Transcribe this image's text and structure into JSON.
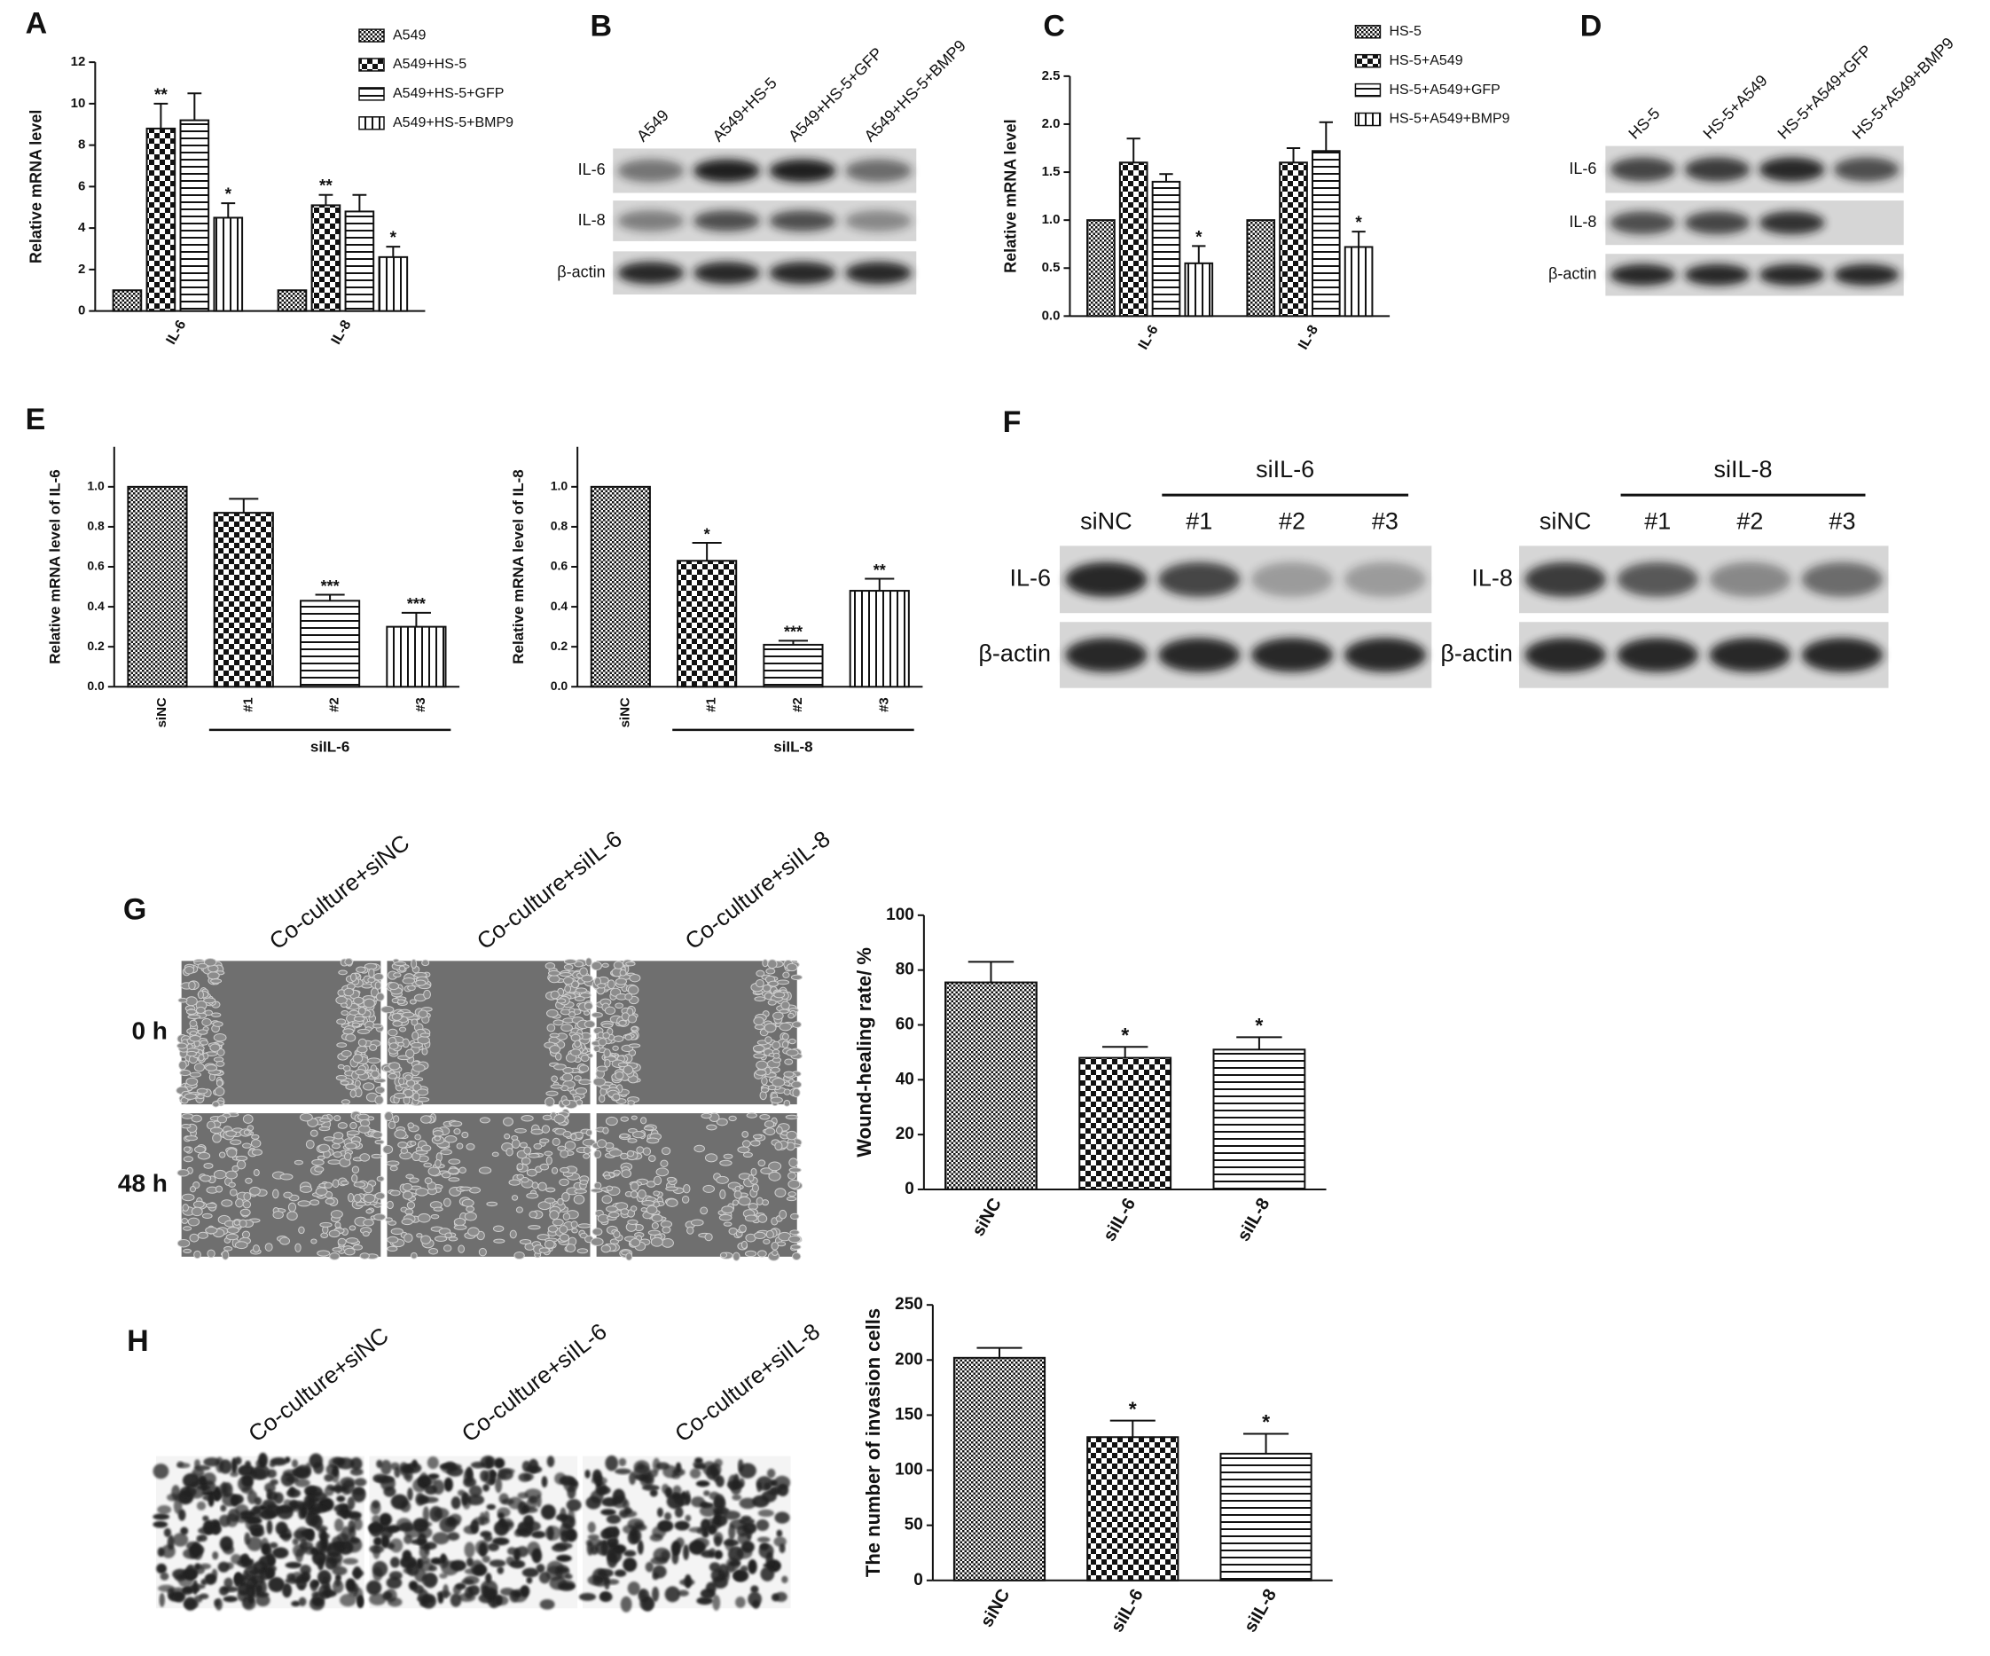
{
  "panels": [
    "A",
    "B",
    "C",
    "D",
    "E",
    "F",
    "G",
    "H"
  ],
  "chart_data": [
    {
      "type": "bar",
      "ylabel": "Relative mRNA level",
      "categories": [
        "IL-6",
        "IL-8"
      ],
      "ylim": [
        0,
        12
      ],
      "yticks": [
        0,
        2,
        4,
        6,
        8,
        10,
        12
      ],
      "legend": "upper right",
      "series": [
        {
          "name": "A549",
          "pattern": "dense",
          "values": [
            1,
            1
          ],
          "errors": [
            null,
            null
          ],
          "stars": [
            null,
            null
          ]
        },
        {
          "name": "A549+HS-5",
          "pattern": "check",
          "values": [
            8.8,
            5.1
          ],
          "errors": [
            1.2,
            0.5
          ],
          "stars": [
            "**",
            "**"
          ]
        },
        {
          "name": "A549+HS-5+GFP",
          "pattern": "hlines",
          "values": [
            9.2,
            4.8
          ],
          "errors": [
            1.3,
            0.8
          ],
          "stars": [
            null,
            null
          ]
        },
        {
          "name": "A549+HS-5+BMP9",
          "pattern": "vlines",
          "values": [
            4.5,
            2.6
          ],
          "errors": [
            0.7,
            0.5
          ],
          "stars": [
            "*",
            "*"
          ]
        }
      ]
    },
    {
      "type": "bar",
      "ylabel": "Relative mRNA level",
      "categories": [
        "IL-6",
        "IL-8"
      ],
      "ylim": [
        0,
        2.5
      ],
      "yticks": [
        {
          "value": 0,
          "label": "0.0"
        },
        0.5,
        {
          "value": 1,
          "label": "1.0"
        },
        1.5,
        {
          "value": 2,
          "label": "2.0"
        },
        2.5
      ],
      "legend": "upper right",
      "series": [
        {
          "name": "HS-5",
          "pattern": "dense",
          "values": [
            1,
            1
          ],
          "errors": [
            null,
            null
          ],
          "stars": [
            null,
            null
          ]
        },
        {
          "name": "HS-5+A549",
          "pattern": "check",
          "values": [
            1.6,
            1.6
          ],
          "errors": [
            0.25,
            0.15
          ],
          "stars": [
            null,
            null
          ]
        },
        {
          "name": "HS-5+A549+GFP",
          "pattern": "hlines",
          "values": [
            1.4,
            1.72
          ],
          "errors": [
            0.08,
            0.3
          ],
          "stars": [
            null,
            null
          ]
        },
        {
          "name": "HS-5+A549+BMP9",
          "pattern": "vlines",
          "values": [
            0.55,
            0.72
          ],
          "errors": [
            0.18,
            0.16
          ],
          "stars": [
            "*",
            "*"
          ]
        }
      ]
    },
    {
      "type": "bar",
      "ylabel": "Relative mRNA level of IL-6",
      "categories": [
        "siNC",
        "#1",
        "#2",
        "#3"
      ],
      "group_label": "siIL-6",
      "values": [
        1.0,
        0.87,
        0.43,
        0.3
      ],
      "errors": [
        null,
        0.07,
        0.03,
        0.07
      ],
      "stars": [
        null,
        null,
        "***",
        "***"
      ],
      "patterns": [
        "dense",
        "check",
        "hlines",
        "vlines"
      ],
      "ylim": [
        0,
        1.2
      ],
      "yticks": [
        {
          "value": 0,
          "label": "0.0"
        },
        0.2,
        0.4,
        0.6,
        0.8,
        {
          "value": 1,
          "label": "1.0"
        }
      ]
    },
    {
      "type": "bar",
      "ylabel": "Relative mRNA level of IL-8",
      "categories": [
        "siNC",
        "#1",
        "#2",
        "#3"
      ],
      "group_label": "siIL-8",
      "values": [
        1.0,
        0.63,
        0.21,
        0.48
      ],
      "errors": [
        null,
        0.09,
        0.02,
        0.06
      ],
      "stars": [
        null,
        "*",
        "***",
        "**"
      ],
      "patterns": [
        "dense",
        "check",
        "hlines",
        "vlines"
      ],
      "ylim": [
        0,
        1.2
      ],
      "yticks": [
        {
          "value": 0,
          "label": "0.0"
        },
        0.2,
        0.4,
        0.6,
        0.8,
        {
          "value": 1,
          "label": "1.0"
        }
      ]
    },
    {
      "type": "bar",
      "ylabel": "Wound-healing rate/ %",
      "categories": [
        "siNC",
        "siIL-6",
        "siIL-8"
      ],
      "values": [
        75.5,
        48,
        51
      ],
      "errors": [
        7.5,
        4,
        4.5
      ],
      "stars": [
        null,
        "*",
        "*"
      ],
      "patterns": [
        "dense",
        "check",
        "hlines"
      ],
      "ylim": [
        0,
        100
      ],
      "yticks": [
        0,
        20,
        40,
        60,
        80,
        100
      ]
    },
    {
      "type": "bar",
      "ylabel": "The number of invasion cells",
      "categories": [
        "siNC",
        "siIL-6",
        "siIL-8"
      ],
      "values": [
        202,
        130,
        115
      ],
      "errors": [
        9,
        15,
        18
      ],
      "stars": [
        null,
        "*",
        "*"
      ],
      "patterns": [
        "dense",
        "check",
        "hlines"
      ],
      "ylim": [
        0,
        250
      ],
      "yticks": [
        0,
        50,
        100,
        150,
        200,
        250
      ]
    }
  ],
  "blots": [
    {
      "lanes": [
        "A549",
        "A549+HS-5",
        "A549+HS-5+GFP",
        "A549+HS-5+BMP9"
      ],
      "rows": [
        "IL-6",
        "IL-8",
        "β-actin"
      ]
    },
    {
      "lanes": [
        "HS-5",
        "HS-5+A549",
        "HS-5+A549+GFP",
        "HS-5+A549+BMP9"
      ],
      "rows": [
        "IL-6",
        "IL-8",
        "β-actin"
      ]
    },
    {
      "group": "siIL-6",
      "lanes": [
        "siNC",
        "#1",
        "#2",
        "#3"
      ],
      "rows": [
        "IL-6",
        "β-actin"
      ]
    },
    {
      "group": "siIL-8",
      "lanes": [
        "siNC",
        "#1",
        "#2",
        "#3"
      ],
      "rows": [
        "IL-8",
        "β-actin"
      ]
    }
  ],
  "images": [
    {
      "columns": [
        "Co-culture+siNC",
        "Co-culture+siIL-6",
        "Co-culture+siIL-8"
      ],
      "rows": [
        "0 h",
        "48 h"
      ]
    },
    {
      "columns": [
        "Co-culture+siNC",
        "Co-culture+siIL-6",
        "Co-culture+siIL-8"
      ]
    }
  ]
}
